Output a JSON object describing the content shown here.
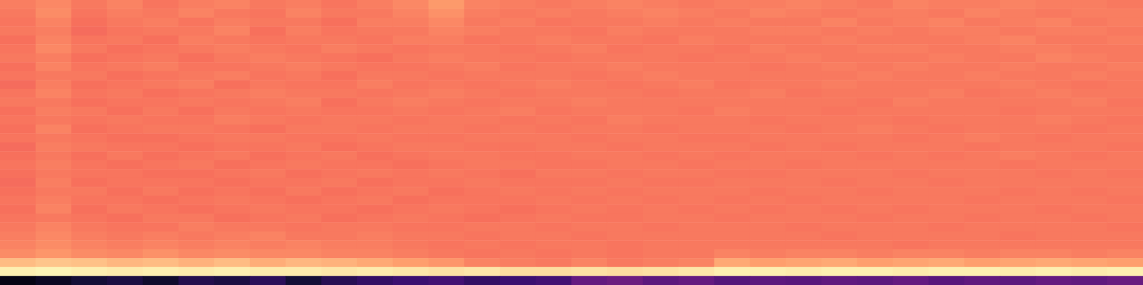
{
  "chart_data": {
    "type": "heatmap",
    "tick_labels": false,
    "clim": [
      0,
      1
    ],
    "cells": [
      [
        0.73,
        0.75,
        0.72,
        0.74,
        0.71,
        0.73,
        0.74,
        0.72,
        0.73,
        0.71,
        0.73,
        0.75,
        0.79,
        0.74,
        0.73,
        0.72,
        0.73,
        0.74,
        0.73,
        0.72,
        0.73,
        0.73,
        0.74,
        0.73,
        0.72,
        0.74,
        0.73,
        0.73,
        0.74,
        0.73,
        0.73,
        0.72
      ],
      [
        0.72,
        0.76,
        0.71,
        0.73,
        0.72,
        0.74,
        0.72,
        0.71,
        0.74,
        0.72,
        0.72,
        0.74,
        0.77,
        0.73,
        0.72,
        0.73,
        0.72,
        0.73,
        0.74,
        0.73,
        0.72,
        0.74,
        0.73,
        0.72,
        0.73,
        0.73,
        0.72,
        0.74,
        0.73,
        0.72,
        0.73,
        0.73
      ],
      [
        0.71,
        0.74,
        0.7,
        0.72,
        0.73,
        0.71,
        0.73,
        0.72,
        0.72,
        0.7,
        0.73,
        0.73,
        0.75,
        0.72,
        0.73,
        0.71,
        0.72,
        0.72,
        0.73,
        0.72,
        0.73,
        0.72,
        0.72,
        0.74,
        0.72,
        0.73,
        0.74,
        0.72,
        0.73,
        0.74,
        0.72,
        0.73
      ],
      [
        0.72,
        0.73,
        0.69,
        0.71,
        0.72,
        0.72,
        0.74,
        0.7,
        0.73,
        0.71,
        0.72,
        0.72,
        0.74,
        0.73,
        0.72,
        0.72,
        0.71,
        0.73,
        0.72,
        0.72,
        0.72,
        0.73,
        0.73,
        0.72,
        0.73,
        0.72,
        0.73,
        0.73,
        0.72,
        0.73,
        0.73,
        0.72
      ],
      [
        0.7,
        0.74,
        0.71,
        0.72,
        0.7,
        0.73,
        0.72,
        0.71,
        0.72,
        0.72,
        0.71,
        0.73,
        0.73,
        0.71,
        0.72,
        0.73,
        0.72,
        0.72,
        0.71,
        0.73,
        0.72,
        0.72,
        0.72,
        0.73,
        0.72,
        0.72,
        0.72,
        0.73,
        0.74,
        0.72,
        0.72,
        0.73
      ],
      [
        0.71,
        0.75,
        0.72,
        0.7,
        0.71,
        0.72,
        0.73,
        0.72,
        0.71,
        0.73,
        0.72,
        0.71,
        0.72,
        0.72,
        0.71,
        0.72,
        0.73,
        0.71,
        0.72,
        0.72,
        0.71,
        0.73,
        0.72,
        0.72,
        0.73,
        0.73,
        0.72,
        0.72,
        0.73,
        0.73,
        0.72,
        0.72
      ],
      [
        0.72,
        0.73,
        0.7,
        0.71,
        0.72,
        0.7,
        0.72,
        0.73,
        0.72,
        0.71,
        0.7,
        0.72,
        0.73,
        0.72,
        0.72,
        0.71,
        0.72,
        0.72,
        0.72,
        0.71,
        0.72,
        0.72,
        0.73,
        0.72,
        0.72,
        0.72,
        0.73,
        0.72,
        0.72,
        0.74,
        0.73,
        0.72
      ],
      [
        0.7,
        0.74,
        0.71,
        0.72,
        0.73,
        0.71,
        0.71,
        0.72,
        0.73,
        0.72,
        0.71,
        0.71,
        0.72,
        0.73,
        0.71,
        0.72,
        0.72,
        0.73,
        0.72,
        0.72,
        0.72,
        0.71,
        0.72,
        0.73,
        0.72,
        0.73,
        0.72,
        0.72,
        0.73,
        0.72,
        0.72,
        0.73
      ],
      [
        0.71,
        0.72,
        0.72,
        0.7,
        0.71,
        0.72,
        0.73,
        0.71,
        0.72,
        0.7,
        0.72,
        0.72,
        0.71,
        0.72,
        0.72,
        0.72,
        0.71,
        0.72,
        0.73,
        0.72,
        0.72,
        0.72,
        0.72,
        0.72,
        0.73,
        0.72,
        0.72,
        0.73,
        0.72,
        0.72,
        0.73,
        0.72
      ],
      [
        0.69,
        0.73,
        0.7,
        0.71,
        0.72,
        0.73,
        0.7,
        0.72,
        0.71,
        0.71,
        0.73,
        0.71,
        0.72,
        0.71,
        0.72,
        0.73,
        0.72,
        0.71,
        0.72,
        0.73,
        0.71,
        0.72,
        0.72,
        0.73,
        0.72,
        0.72,
        0.72,
        0.72,
        0.73,
        0.72,
        0.71,
        0.72
      ],
      [
        0.71,
        0.74,
        0.71,
        0.72,
        0.7,
        0.71,
        0.72,
        0.73,
        0.72,
        0.72,
        0.71,
        0.72,
        0.73,
        0.72,
        0.71,
        0.72,
        0.72,
        0.72,
        0.71,
        0.72,
        0.72,
        0.73,
        0.71,
        0.72,
        0.72,
        0.72,
        0.73,
        0.71,
        0.72,
        0.73,
        0.72,
        0.72
      ],
      [
        0.72,
        0.72,
        0.7,
        0.71,
        0.71,
        0.72,
        0.71,
        0.72,
        0.73,
        0.7,
        0.72,
        0.73,
        0.72,
        0.71,
        0.72,
        0.72,
        0.73,
        0.72,
        0.72,
        0.72,
        0.72,
        0.72,
        0.72,
        0.72,
        0.71,
        0.73,
        0.72,
        0.72,
        0.72,
        0.72,
        0.73,
        0.71
      ],
      [
        0.7,
        0.73,
        0.72,
        0.7,
        0.72,
        0.7,
        0.72,
        0.71,
        0.72,
        0.71,
        0.71,
        0.72,
        0.71,
        0.72,
        0.73,
        0.71,
        0.72,
        0.72,
        0.72,
        0.71,
        0.73,
        0.72,
        0.72,
        0.71,
        0.72,
        0.72,
        0.72,
        0.72,
        0.71,
        0.72,
        0.72,
        0.72
      ],
      [
        0.71,
        0.72,
        0.71,
        0.72,
        0.71,
        0.71,
        0.73,
        0.72,
        0.71,
        0.72,
        0.72,
        0.71,
        0.72,
        0.72,
        0.71,
        0.72,
        0.71,
        0.73,
        0.72,
        0.72,
        0.72,
        0.71,
        0.72,
        0.72,
        0.72,
        0.71,
        0.72,
        0.72,
        0.72,
        0.73,
        0.72,
        0.71
      ],
      [
        0.7,
        0.74,
        0.7,
        0.71,
        0.72,
        0.72,
        0.71,
        0.7,
        0.72,
        0.72,
        0.71,
        0.72,
        0.72,
        0.71,
        0.72,
        0.71,
        0.72,
        0.72,
        0.71,
        0.72,
        0.72,
        0.72,
        0.71,
        0.72,
        0.73,
        0.72,
        0.71,
        0.72,
        0.72,
        0.72,
        0.71,
        0.72
      ],
      [
        0.71,
        0.72,
        0.71,
        0.7,
        0.7,
        0.71,
        0.72,
        0.72,
        0.71,
        0.71,
        0.72,
        0.71,
        0.71,
        0.72,
        0.72,
        0.72,
        0.71,
        0.72,
        0.72,
        0.71,
        0.71,
        0.72,
        0.72,
        0.72,
        0.72,
        0.71,
        0.72,
        0.73,
        0.72,
        0.71,
        0.72,
        0.72
      ],
      [
        0.69,
        0.73,
        0.72,
        0.71,
        0.71,
        0.7,
        0.71,
        0.71,
        0.72,
        0.7,
        0.71,
        0.72,
        0.72,
        0.71,
        0.71,
        0.72,
        0.72,
        0.71,
        0.72,
        0.72,
        0.72,
        0.71,
        0.72,
        0.71,
        0.72,
        0.72,
        0.72,
        0.71,
        0.72,
        0.72,
        0.72,
        0.71
      ],
      [
        0.7,
        0.72,
        0.7,
        0.72,
        0.7,
        0.71,
        0.72,
        0.7,
        0.71,
        0.72,
        0.7,
        0.71,
        0.72,
        0.72,
        0.71,
        0.71,
        0.72,
        0.72,
        0.71,
        0.72,
        0.71,
        0.72,
        0.72,
        0.72,
        0.71,
        0.72,
        0.71,
        0.72,
        0.73,
        0.72,
        0.71,
        0.72
      ],
      [
        0.71,
        0.73,
        0.71,
        0.7,
        0.71,
        0.72,
        0.7,
        0.71,
        0.72,
        0.71,
        0.71,
        0.7,
        0.71,
        0.72,
        0.72,
        0.71,
        0.71,
        0.72,
        0.72,
        0.71,
        0.72,
        0.72,
        0.71,
        0.72,
        0.72,
        0.72,
        0.72,
        0.72,
        0.71,
        0.72,
        0.72,
        0.72
      ],
      [
        0.7,
        0.72,
        0.71,
        0.71,
        0.7,
        0.7,
        0.71,
        0.72,
        0.7,
        0.71,
        0.72,
        0.71,
        0.72,
        0.71,
        0.7,
        0.72,
        0.72,
        0.71,
        0.72,
        0.72,
        0.71,
        0.71,
        0.72,
        0.72,
        0.72,
        0.71,
        0.72,
        0.72,
        0.72,
        0.71,
        0.72,
        0.71
      ],
      [
        0.69,
        0.73,
        0.7,
        0.71,
        0.71,
        0.71,
        0.7,
        0.71,
        0.71,
        0.72,
        0.7,
        0.71,
        0.71,
        0.72,
        0.71,
        0.71,
        0.71,
        0.72,
        0.71,
        0.71,
        0.72,
        0.72,
        0.72,
        0.71,
        0.72,
        0.72,
        0.71,
        0.72,
        0.72,
        0.72,
        0.72,
        0.72
      ],
      [
        0.7,
        0.72,
        0.72,
        0.7,
        0.72,
        0.7,
        0.71,
        0.7,
        0.72,
        0.7,
        0.71,
        0.72,
        0.7,
        0.71,
        0.72,
        0.71,
        0.72,
        0.71,
        0.72,
        0.72,
        0.72,
        0.71,
        0.72,
        0.72,
        0.71,
        0.72,
        0.72,
        0.72,
        0.71,
        0.72,
        0.71,
        0.72
      ],
      [
        0.71,
        0.73,
        0.71,
        0.71,
        0.7,
        0.71,
        0.72,
        0.71,
        0.7,
        0.71,
        0.72,
        0.7,
        0.71,
        0.71,
        0.71,
        0.72,
        0.71,
        0.72,
        0.71,
        0.72,
        0.71,
        0.72,
        0.71,
        0.72,
        0.72,
        0.72,
        0.72,
        0.71,
        0.72,
        0.72,
        0.72,
        0.71
      ],
      [
        0.7,
        0.74,
        0.7,
        0.72,
        0.71,
        0.7,
        0.71,
        0.72,
        0.71,
        0.71,
        0.7,
        0.71,
        0.72,
        0.71,
        0.7,
        0.71,
        0.72,
        0.71,
        0.72,
        0.71,
        0.72,
        0.71,
        0.72,
        0.71,
        0.72,
        0.71,
        0.72,
        0.72,
        0.72,
        0.71,
        0.72,
        0.72
      ],
      [
        0.71,
        0.72,
        0.71,
        0.7,
        0.72,
        0.72,
        0.7,
        0.71,
        0.72,
        0.7,
        0.71,
        0.72,
        0.71,
        0.7,
        0.71,
        0.72,
        0.71,
        0.71,
        0.72,
        0.72,
        0.71,
        0.72,
        0.72,
        0.72,
        0.71,
        0.72,
        0.72,
        0.71,
        0.72,
        0.72,
        0.71,
        0.72
      ],
      [
        0.72,
        0.74,
        0.72,
        0.71,
        0.71,
        0.73,
        0.72,
        0.72,
        0.71,
        0.72,
        0.72,
        0.71,
        0.71,
        0.72,
        0.72,
        0.71,
        0.72,
        0.72,
        0.71,
        0.72,
        0.72,
        0.72,
        0.71,
        0.72,
        0.72,
        0.72,
        0.71,
        0.72,
        0.72,
        0.72,
        0.72,
        0.71
      ],
      [
        0.73,
        0.75,
        0.73,
        0.72,
        0.73,
        0.72,
        0.73,
        0.74,
        0.72,
        0.72,
        0.73,
        0.72,
        0.72,
        0.71,
        0.72,
        0.72,
        0.71,
        0.72,
        0.72,
        0.72,
        0.72,
        0.72,
        0.72,
        0.71,
        0.72,
        0.72,
        0.72,
        0.72,
        0.71,
        0.72,
        0.72,
        0.72
      ],
      [
        0.74,
        0.76,
        0.74,
        0.73,
        0.74,
        0.73,
        0.74,
        0.73,
        0.74,
        0.73,
        0.73,
        0.72,
        0.71,
        0.72,
        0.71,
        0.72,
        0.72,
        0.71,
        0.72,
        0.72,
        0.72,
        0.72,
        0.72,
        0.72,
        0.72,
        0.71,
        0.72,
        0.72,
        0.72,
        0.72,
        0.72,
        0.72
      ],
      [
        0.76,
        0.78,
        0.76,
        0.75,
        0.77,
        0.75,
        0.76,
        0.75,
        0.75,
        0.74,
        0.74,
        0.73,
        0.72,
        0.71,
        0.72,
        0.71,
        0.72,
        0.71,
        0.72,
        0.72,
        0.74,
        0.73,
        0.74,
        0.74,
        0.73,
        0.74,
        0.74,
        0.73,
        0.74,
        0.74,
        0.73,
        0.74
      ],
      [
        0.86,
        0.88,
        0.87,
        0.85,
        0.86,
        0.84,
        0.86,
        0.83,
        0.85,
        0.84,
        0.82,
        0.8,
        0.78,
        0.74,
        0.73,
        0.72,
        0.74,
        0.72,
        0.73,
        0.74,
        0.82,
        0.8,
        0.81,
        0.82,
        0.8,
        0.81,
        0.82,
        0.8,
        0.81,
        0.82,
        0.81,
        0.8
      ],
      [
        0.97,
        0.98,
        0.97,
        0.96,
        0.97,
        0.96,
        0.97,
        0.96,
        0.96,
        0.95,
        0.96,
        0.95,
        0.94,
        0.95,
        0.93,
        0.93,
        0.94,
        0.93,
        0.94,
        0.95,
        0.97,
        0.97,
        0.96,
        0.97,
        0.97,
        0.96,
        0.97,
        0.97,
        0.96,
        0.97,
        0.96,
        0.97
      ],
      [
        0.03,
        0.06,
        0.1,
        0.12,
        0.08,
        0.14,
        0.12,
        0.16,
        0.1,
        0.15,
        0.18,
        0.2,
        0.22,
        0.18,
        0.2,
        0.22,
        0.3,
        0.32,
        0.28,
        0.3,
        0.26,
        0.28,
        0.27,
        0.29,
        0.28,
        0.3,
        0.27,
        0.29,
        0.28,
        0.3,
        0.29,
        0.31
      ]
    ]
  }
}
